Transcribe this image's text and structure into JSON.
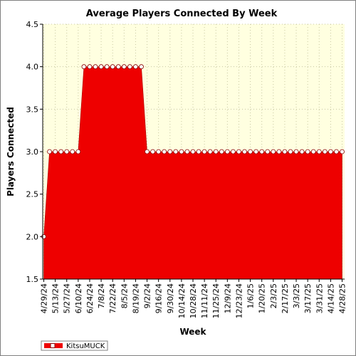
{
  "chart_data": {
    "type": "area",
    "title": "Average Players Connected By Week",
    "xlabel": "Week",
    "ylabel": "Players Connected",
    "ylim": [
      1.5,
      4.5
    ],
    "yticks": [
      "1.5",
      "2.0",
      "2.5",
      "3.0",
      "3.5",
      "4.0",
      "4.5"
    ],
    "x_tick_labels": [
      "4/29/24",
      "5/13/24",
      "5/27/24",
      "6/10/24",
      "6/24/24",
      "7/8/24",
      "7/22/24",
      "8/5/24",
      "8/19/24",
      "9/2/24",
      "9/16/24",
      "9/30/24",
      "10/14/24",
      "10/28/24",
      "11/11/24",
      "11/25/24",
      "12/9/24",
      "12/23/24",
      "1/6/25",
      "1/20/25",
      "2/3/25",
      "2/17/25",
      "3/3/25",
      "3/17/25",
      "3/31/25",
      "4/14/25",
      "4/28/25"
    ],
    "grid": true,
    "legend_position": "bottom-left",
    "series": [
      {
        "name": "KitsuMUCK",
        "color": "#ee0000",
        "x": [
          "4/29/24",
          "5/6/24",
          "5/13/24",
          "5/20/24",
          "5/27/24",
          "6/3/24",
          "6/10/24",
          "6/17/24",
          "6/24/24",
          "7/1/24",
          "7/8/24",
          "7/15/24",
          "7/22/24",
          "7/29/24",
          "8/5/24",
          "8/12/24",
          "8/19/24",
          "8/26/24",
          "9/2/24",
          "9/9/24",
          "9/16/24",
          "9/23/24",
          "9/30/24",
          "10/7/24",
          "10/14/24",
          "10/21/24",
          "10/28/24",
          "11/4/24",
          "11/11/24",
          "11/18/24",
          "11/25/24",
          "12/2/24",
          "12/9/24",
          "12/16/24",
          "12/23/24",
          "12/30/24",
          "1/6/25",
          "1/13/25",
          "1/20/25",
          "1/27/25",
          "2/3/25",
          "2/10/25",
          "2/17/25",
          "2/24/25",
          "3/3/25",
          "3/10/25",
          "3/17/25",
          "3/24/25",
          "3/31/25",
          "4/7/25",
          "4/14/25",
          "4/21/25",
          "4/28/25"
        ],
        "values": [
          2.0,
          3.0,
          3.0,
          3.0,
          3.0,
          3.0,
          3.0,
          4.0,
          4.0,
          4.0,
          4.0,
          4.0,
          4.0,
          4.0,
          4.0,
          4.0,
          4.0,
          4.0,
          3.0,
          3.0,
          3.0,
          3.0,
          3.0,
          3.0,
          3.0,
          3.0,
          3.0,
          3.0,
          3.0,
          3.0,
          3.0,
          3.0,
          3.0,
          3.0,
          3.0,
          3.0,
          3.0,
          3.0,
          3.0,
          3.0,
          3.0,
          3.0,
          3.0,
          3.0,
          3.0,
          3.0,
          3.0,
          3.0,
          3.0,
          3.0,
          3.0,
          3.0,
          3.0
        ]
      }
    ]
  },
  "colors": {
    "plot_background": "#ffffe0",
    "grid": "#c8c8a0",
    "area_fill": "#ee0000",
    "marker_fill": "#ffffff",
    "marker_stroke": "#880000"
  }
}
